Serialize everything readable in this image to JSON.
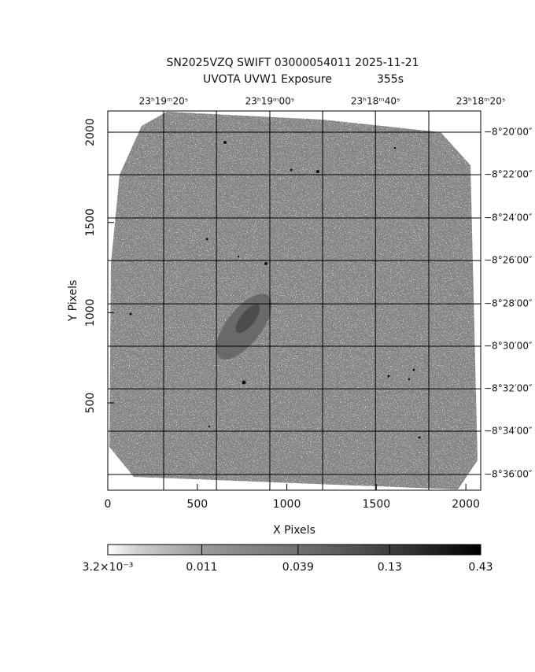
{
  "chart_data": {
    "type": "image",
    "title": "SN2025VZQ SWIFT 03000054011 2025-11-21",
    "subtitle": "UVOTA UVW1 Exposure",
    "exposure": "355s",
    "x_label": "X Pixels",
    "y_label": "Y Pixels",
    "xlim": [
      0,
      2083
    ],
    "ylim": [
      16,
      2118
    ],
    "xticks": [
      0,
      500,
      1000,
      1500,
      2000
    ],
    "yticks": [
      500,
      1000,
      1500,
      2000
    ],
    "ra_ticks": [
      {
        "value": 312,
        "label": "23ʰ19ᵐ20ˢ"
      },
      {
        "value": 905,
        "label": "23ʰ19ᵐ00ˢ"
      },
      {
        "value": 1495,
        "label": "23ʰ18ᵐ40ˢ"
      },
      {
        "value": 2083,
        "label": "23ʰ18ᵐ20ˢ"
      }
    ],
    "ra_grid": [
      607,
      1200,
      1793
    ],
    "dec_ticks": [
      {
        "value": 2000,
        "label": "−8°20′00″"
      },
      {
        "value": 1765,
        "label": "−8°22′00″"
      },
      {
        "value": 1525,
        "label": "−8°24′00″"
      },
      {
        "value": 1289,
        "label": "−8°26′00″"
      },
      {
        "value": 1049,
        "label": "−8°28′00″"
      },
      {
        "value": 814,
        "label": "−8°30′00″"
      },
      {
        "value": 578,
        "label": "−8°32′00″"
      },
      {
        "value": 343,
        "label": "−8°34′00″"
      },
      {
        "value": 103,
        "label": "−8°36′00″"
      }
    ],
    "grid": true,
    "colorbar": {
      "scale": "log",
      "lim": [
        0.0032,
        0.43
      ],
      "ticks": [
        {
          "value": 0.0032,
          "label": "3.2×10⁻³"
        },
        0.011,
        0.039,
        0.13,
        0.43
      ]
    }
  }
}
